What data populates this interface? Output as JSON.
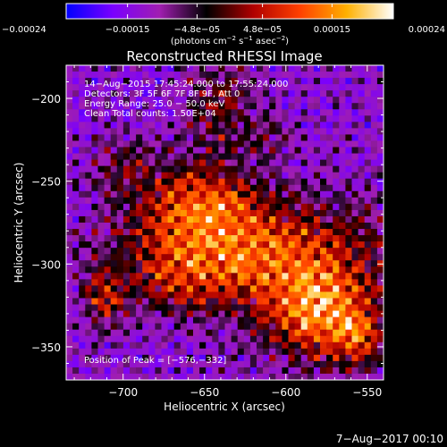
{
  "chart_data": {
    "type": "heatmap",
    "title": "Reconstructed RHESSI Image",
    "xlabel": "Heliocentric X (arcsec)",
    "ylabel": "Heliocentric Y (arcsec)",
    "xlim": [
      -735,
      -540
    ],
    "ylim": [
      -370,
      -180
    ],
    "x_ticks": [
      -700,
      -650,
      -600,
      -550
    ],
    "x_tick_labels": [
      "−700",
      "−650",
      "−600",
      "−550"
    ],
    "y_ticks": [
      -200,
      -250,
      -300,
      -350
    ],
    "y_tick_labels": [
      "−200",
      "−250",
      "−300",
      "−350"
    ],
    "colorbar": {
      "range": [
        -0.00024,
        0.00024
      ],
      "ticks": [
        -0.00024,
        -0.00015,
        -4.8e-05,
        4.8e-05,
        0.00015,
        0.00024
      ],
      "tick_labels": [
        "−0.00024",
        "−0.00015",
        "−4.8e−05",
        "4.8e−05",
        "0.00015",
        "0.00024"
      ],
      "colors": [
        "#0000ff",
        "#7a00ff",
        "#a01eb0",
        "#000000",
        "#b00000",
        "#ff4000",
        "#ffb000",
        "#ffffff"
      ]
    },
    "units_label": {
      "prefix": "(photons cm",
      "e1": "−2",
      "mid1": " s",
      "e2": "−1",
      "mid2": " asec",
      "e3": "−2",
      "suffix": ")"
    },
    "peak": {
      "x": -576,
      "y": -332,
      "value": 0.00024
    },
    "info_lines": [
      "14−Aug−2015 17:45:24.000 to 17:55:24.000",
      "Detectors: 3F 5F 6F 7F 8F 9F, Att 0",
      "Energy Range: 25.0 − 50.0 keV",
      "Clean    Total counts: 1.50E+04"
    ],
    "peak_label": "Position of Peak = [−576,−332]",
    "sources": [
      {
        "x": -618,
        "y": -290,
        "amp": 0.00019,
        "sx": 55,
        "sy": 22
      },
      {
        "x": -580,
        "y": -330,
        "amp": 0.00024,
        "sx": 24,
        "sy": 20
      },
      {
        "x": -655,
        "y": -262,
        "amp": 0.00016,
        "sx": 25,
        "sy": 18
      },
      {
        "x": -712,
        "y": -320,
        "amp": 0.00013,
        "sx": 9,
        "sy": 12
      },
      {
        "x": -660,
        "y": -310,
        "amp": 0.0001,
        "sx": 28,
        "sy": 15
      },
      {
        "x": -640,
        "y": -205,
        "amp": 0.00011,
        "sx": 14,
        "sy": 20
      },
      {
        "x": -700,
        "y": -240,
        "amp": 8e-05,
        "sx": 14,
        "sy": 12
      },
      {
        "x": -610,
        "y": -225,
        "amp": 6e-05,
        "sx": 10,
        "sy": 10
      },
      {
        "x": -555,
        "y": -345,
        "amp": 0.00012,
        "sx": 10,
        "sy": 12
      }
    ]
  },
  "footer_date": "7−Aug−2017 00:10"
}
